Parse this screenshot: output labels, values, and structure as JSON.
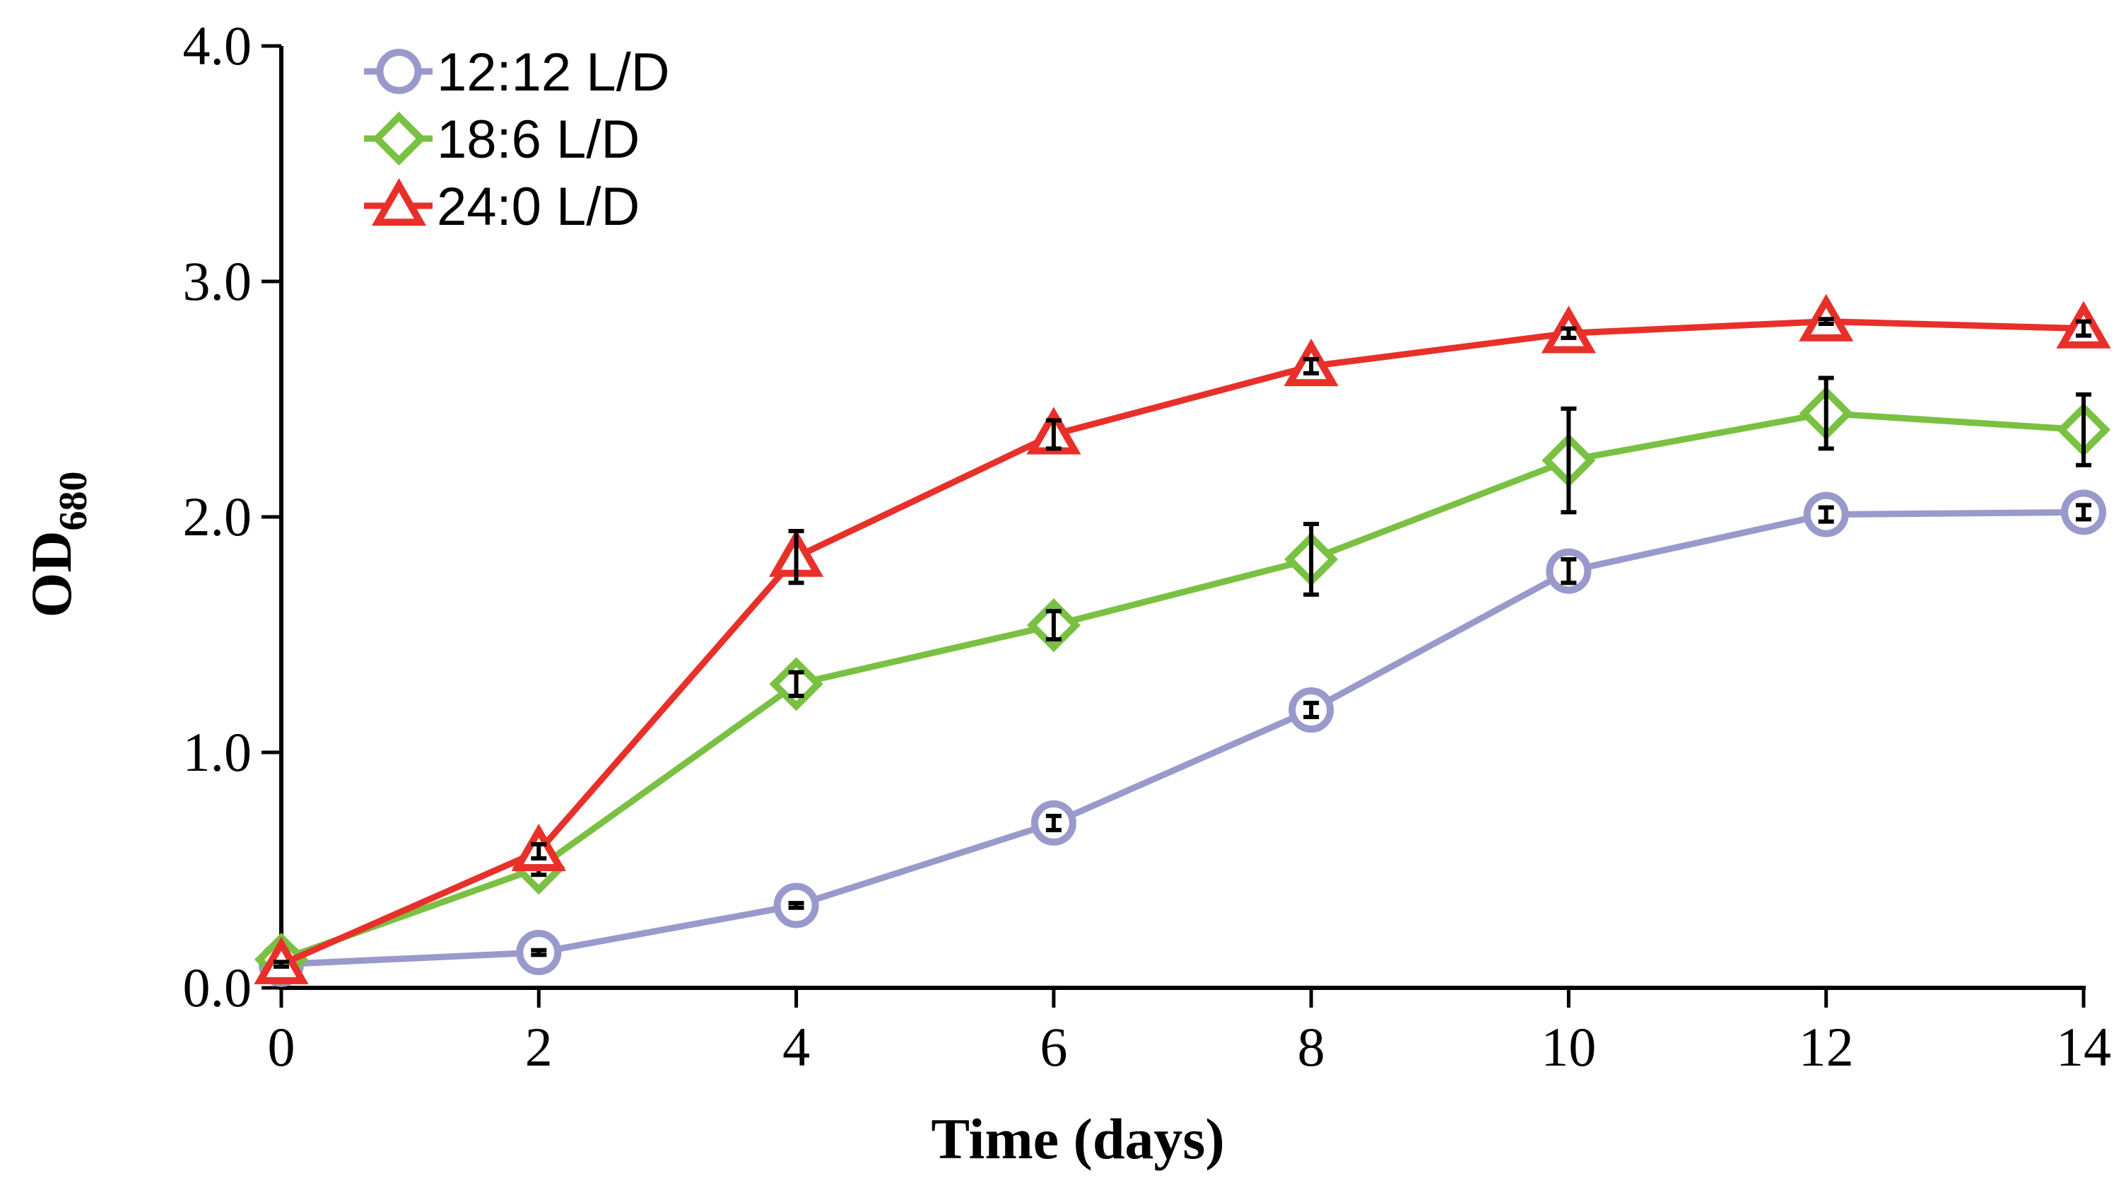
{
  "chart_data": {
    "type": "line",
    "title": "",
    "xlabel": "Time (days)",
    "ylabel": "OD",
    "ylabel_subscript": "680",
    "xlim": [
      0,
      14
    ],
    "ylim": [
      0,
      4
    ],
    "x": [
      0,
      2,
      4,
      6,
      8,
      10,
      12,
      14
    ],
    "x_ticks": [
      "0",
      "2",
      "4",
      "6",
      "8",
      "10",
      "12",
      "14"
    ],
    "y_tick_values": [
      0,
      1,
      2,
      3,
      4
    ],
    "y_ticks": [
      "0.0",
      "1.0",
      "2.0",
      "3.0",
      "4.0"
    ],
    "grid": false,
    "legend_position": "top-left",
    "series": [
      {
        "name": "12:12 L/D",
        "marker": "circle",
        "color": "#9999cc",
        "values": [
          0.1,
          0.15,
          0.35,
          0.7,
          1.18,
          1.77,
          2.01,
          2.02
        ],
        "errors": [
          0.01,
          0.01,
          0.01,
          0.03,
          0.03,
          0.05,
          0.03,
          0.03
        ]
      },
      {
        "name": "18:6 L/D",
        "marker": "diamond",
        "color": "#7ac143",
        "values": [
          0.12,
          0.51,
          1.29,
          1.54,
          1.82,
          2.24,
          2.44,
          2.37
        ],
        "errors": [
          0.01,
          0.03,
          0.05,
          0.06,
          0.15,
          0.22,
          0.15,
          0.15
        ]
      },
      {
        "name": "24:0 L/D",
        "marker": "triangle",
        "color": "#e8302a",
        "values": [
          0.1,
          0.58,
          1.83,
          2.35,
          2.64,
          2.78,
          2.83,
          2.8
        ],
        "errors": [
          0.01,
          0.03,
          0.11,
          0.06,
          0.03,
          0.02,
          0.01,
          0.03
        ]
      }
    ]
  }
}
